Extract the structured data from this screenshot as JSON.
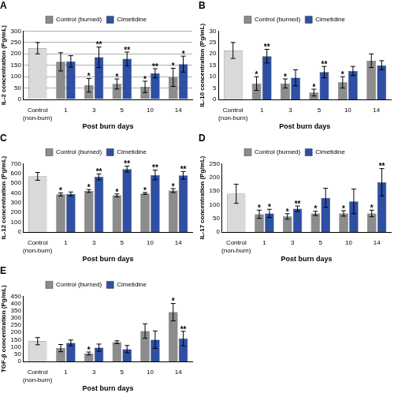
{
  "chart_data": [
    {
      "type": "bar",
      "title": "A",
      "x_label": "Post burn days",
      "y_label": "IL-2 concentration (Pg/mL)",
      "categories": [
        "Control (non-burn)",
        "1",
        "3",
        "5",
        "10",
        "14"
      ],
      "series": [
        {
          "name": "Control (burned)",
          "color": "#8c8c8c",
          "colors": [
            "#d9d9d9",
            "#8c8c8c",
            "#8c8c8c",
            "#8c8c8c",
            "#8c8c8c",
            "#8c8c8c"
          ],
          "values": [
            225,
            165,
            62,
            68,
            55,
            97
          ],
          "errors": [
            25,
            40,
            30,
            22,
            25,
            40
          ],
          "significance": [
            null,
            null,
            "*",
            "*",
            "*",
            "*"
          ]
        },
        {
          "name": "Cimetidine",
          "color": "#2e4fa3",
          "values": [
            null,
            167,
            185,
            178,
            115,
            155
          ],
          "errors": [
            null,
            25,
            45,
            30,
            20,
            35
          ],
          "significance": [
            null,
            null,
            "**",
            "**",
            "**",
            "*"
          ]
        }
      ],
      "ylim": [
        0,
        300
      ],
      "yticks": [
        0,
        50,
        100,
        150,
        200,
        250,
        300
      ],
      "grid": true,
      "legend": "top"
    },
    {
      "type": "bar",
      "title": "B",
      "x_label": "Post burn days",
      "y_label": "IL-10 concentration (Pg/mL)",
      "categories": [
        "Control (non-burn)",
        "1",
        "3",
        "5",
        "10",
        "14"
      ],
      "series": [
        {
          "name": "Control (burned)",
          "color": "#8c8c8c",
          "colors": [
            "#d9d9d9",
            "#8c8c8c",
            "#8c8c8c",
            "#8c8c8c",
            "#8c8c8c",
            "#8c8c8c"
          ],
          "values": [
            21.5,
            7,
            7,
            3,
            7.5,
            17
          ],
          "errors": [
            3.5,
            3,
            2,
            1.5,
            2.5,
            3
          ],
          "significance": [
            null,
            "*",
            "*",
            "*",
            "*",
            null
          ]
        },
        {
          "name": "Cimetidine",
          "color": "#2e4fa3",
          "values": [
            null,
            19,
            9.5,
            12,
            12.5,
            15
          ],
          "errors": [
            null,
            3,
            3.5,
            2.5,
            2,
            2
          ],
          "significance": [
            null,
            "**",
            null,
            "**",
            null,
            null
          ]
        }
      ],
      "ylim": [
        0,
        30
      ],
      "yticks": [
        0,
        5,
        10,
        15,
        20,
        25,
        30
      ],
      "grid": false,
      "legend": "top"
    },
    {
      "type": "bar",
      "title": "C",
      "x_label": "Post burn days",
      "y_label": "IL-12 concentration (Pg/mL)",
      "categories": [
        "Control (non-burn)",
        "1",
        "3",
        "5",
        "10",
        "14"
      ],
      "series": [
        {
          "name": "Control (burned)",
          "color": "#8c8c8c",
          "colors": [
            "#d9d9d9",
            "#8c8c8c",
            "#8c8c8c",
            "#8c8c8c",
            "#8c8c8c",
            "#8c8c8c"
          ],
          "values": [
            570,
            385,
            420,
            375,
            395,
            425
          ],
          "errors": [
            40,
            15,
            15,
            15,
            10,
            20
          ],
          "significance": [
            null,
            "*",
            "*",
            "*",
            "*",
            "*"
          ]
        },
        {
          "name": "Cimetidine",
          "color": "#2e4fa3",
          "values": [
            null,
            390,
            565,
            645,
            585,
            580
          ],
          "errors": [
            null,
            20,
            30,
            30,
            50,
            40
          ],
          "significance": [
            null,
            null,
            "**",
            "**",
            "**",
            "**"
          ]
        }
      ],
      "ylim": [
        0,
        700
      ],
      "yticks": [
        0,
        100,
        200,
        300,
        400,
        500,
        600,
        700
      ],
      "grid": false,
      "legend": "top"
    },
    {
      "type": "bar",
      "title": "D",
      "x_label": "Post burn days",
      "y_label": "IL-17 concentration (Pg/mL)",
      "categories": [
        "Control (non-burn)",
        "1",
        "3",
        "5",
        "10",
        "14"
      ],
      "series": [
        {
          "name": "Control (burned)",
          "color": "#8c8c8c",
          "colors": [
            "#d9d9d9",
            "#8c8c8c",
            "#8c8c8c",
            "#8c8c8c",
            "#8c8c8c",
            "#8c8c8c"
          ],
          "values": [
            140,
            65,
            57,
            68,
            68,
            68
          ],
          "errors": [
            35,
            15,
            10,
            8,
            10,
            12
          ],
          "significance": [
            null,
            "*",
            "*",
            "*",
            "*",
            "*"
          ]
        },
        {
          "name": "Cimetidine",
          "color": "#2e4fa3",
          "values": [
            null,
            68,
            85,
            125,
            112,
            182
          ],
          "errors": [
            null,
            15,
            10,
            35,
            45,
            50
          ],
          "significance": [
            null,
            "*",
            "**",
            null,
            null,
            "**"
          ]
        }
      ],
      "ylim": [
        0,
        250
      ],
      "yticks": [
        0,
        50,
        100,
        150,
        200,
        250
      ],
      "grid": false,
      "legend": "top"
    },
    {
      "type": "bar",
      "title": "E",
      "x_label": "Post burn days",
      "y_label": "TGF-β concentration (Pg/mL)",
      "categories": [
        "Control (non-burn)",
        "1",
        "3",
        "5",
        "10",
        "14"
      ],
      "series": [
        {
          "name": "Control (burned)",
          "color": "#8c8c8c",
          "colors": [
            "#d9d9d9",
            "#8c8c8c",
            "#8c8c8c",
            "#8c8c8c",
            "#8c8c8c",
            "#8c8c8c"
          ],
          "values": [
            140,
            92,
            55,
            133,
            210,
            340
          ],
          "errors": [
            25,
            25,
            10,
            10,
            50,
            60
          ],
          "significance": [
            null,
            null,
            "*",
            null,
            null,
            "*"
          ]
        },
        {
          "name": "Cimetidine",
          "color": "#2e4fa3",
          "values": [
            null,
            128,
            95,
            85,
            150,
            158
          ],
          "errors": [
            null,
            20,
            25,
            25,
            60,
            50
          ],
          "significance": [
            null,
            null,
            null,
            null,
            null,
            "**"
          ]
        }
      ],
      "ylim": [
        0,
        450
      ],
      "yticks": [
        0,
        50,
        100,
        150,
        200,
        250,
        300,
        350,
        400,
        450
      ],
      "grid": false,
      "legend": "top"
    }
  ]
}
